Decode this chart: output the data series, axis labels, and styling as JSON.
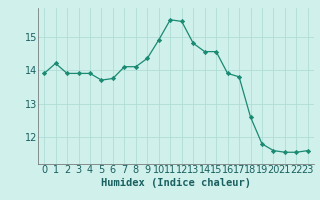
{
  "x": [
    0,
    1,
    2,
    3,
    4,
    5,
    6,
    7,
    8,
    9,
    10,
    11,
    12,
    13,
    14,
    15,
    16,
    17,
    18,
    19,
    20,
    21,
    22,
    23
  ],
  "y": [
    13.9,
    14.2,
    13.9,
    13.9,
    13.9,
    13.7,
    13.75,
    14.1,
    14.1,
    14.35,
    14.9,
    15.5,
    15.45,
    14.8,
    14.55,
    14.55,
    13.9,
    13.8,
    12.6,
    11.8,
    11.6,
    11.55,
    11.55,
    11.6
  ],
  "line_color": "#1a8a72",
  "marker": "D",
  "marker_size": 2.2,
  "bg_color": "#cff0eb",
  "grid_color": "#b0ddd7",
  "xlabel": "Humidex (Indice chaleur)",
  "xlabel_fontsize": 7.5,
  "tick_fontsize": 7,
  "ylim": [
    11.2,
    15.85
  ],
  "xlim": [
    -0.5,
    23.5
  ],
  "yticks": [
    12,
    13,
    14,
    15
  ],
  "xticks": [
    0,
    1,
    2,
    3,
    4,
    5,
    6,
    7,
    8,
    9,
    10,
    11,
    12,
    13,
    14,
    15,
    16,
    17,
    18,
    19,
    20,
    21,
    22,
    23
  ]
}
